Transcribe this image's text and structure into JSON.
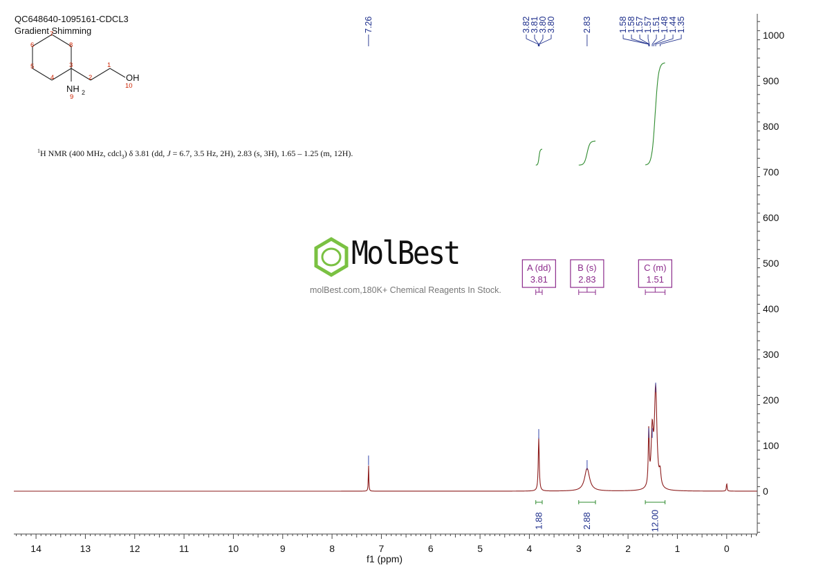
{
  "header": {
    "sample_id": "QC648640-1095161-CDCL3",
    "method": "Gradient Shimming"
  },
  "structure": {
    "atom_numbers": [
      "1",
      "2",
      "3",
      "4",
      "5",
      "6",
      "7",
      "8",
      "9",
      "10"
    ],
    "oh_label": "OH",
    "nh2_label": "NH",
    "nh2_sub": "2"
  },
  "nmr_summary": {
    "sup": "1",
    "text_a": "H NMR (400 MHz, cdcl",
    "sub": "3",
    "text_b": ") δ 3.81 (dd, ",
    "j_italic": "J",
    "text_c": " = 6.7, 3.5 Hz, 2H), 2.83 (s, 3H), 1.65 – 1.25 (m, 12H)."
  },
  "watermark": {
    "brand": "MolBest",
    "tagline": "molBest.com,180K+ Chemical Reagents In Stock."
  },
  "colors": {
    "spectrum": "#8b1a1a",
    "integral": "#2e8b2e",
    "peak_label": "#1e2f8c",
    "multiplet": "#8b2a8b",
    "atom_number": "#cc2200",
    "watermark_green": "#7ac142"
  },
  "chart_data": {
    "type": "line",
    "xlabel": "f1 (ppm)",
    "xlim": [
      14.45,
      -0.62
    ],
    "x_reversed": true,
    "ylim": [
      -95,
      1045
    ],
    "x_ticks": [
      14,
      13,
      12,
      11,
      10,
      9,
      8,
      7,
      6,
      5,
      4,
      3,
      2,
      1,
      0
    ],
    "y_ticks": [
      0,
      100,
      200,
      300,
      400,
      500,
      600,
      700,
      800,
      900,
      1000
    ],
    "peak_labels": [
      "7.26",
      "3.82",
      "3.81",
      "3.80",
      "3.80",
      "2.83",
      "1.58",
      "1.58",
      "1.57",
      "1.57",
      "1.51",
      "1.48",
      "1.44",
      "1.35"
    ],
    "peak_positions": [
      7.26,
      3.82,
      3.81,
      3.8,
      3.8,
      2.83,
      1.58,
      1.58,
      1.57,
      1.57,
      1.51,
      1.48,
      1.44,
      1.35
    ],
    "peaks": [
      {
        "ppm": 7.26,
        "height": 60,
        "width": 0.006
      },
      {
        "ppm": 3.81,
        "height": 118,
        "width": 0.012
      },
      {
        "ppm": 2.83,
        "height": 50,
        "width": 0.06
      },
      {
        "ppm": 1.58,
        "height": 120,
        "width": 0.012
      },
      {
        "ppm": 1.51,
        "height": 120,
        "width": 0.025
      },
      {
        "ppm": 1.44,
        "height": 220,
        "width": 0.03
      },
      {
        "ppm": 1.35,
        "height": 30,
        "width": 0.02
      },
      {
        "ppm": 0.0,
        "height": 18,
        "width": 0.008
      }
    ],
    "multiplets": [
      {
        "label": "A (dd)",
        "shift": "3.81",
        "from": 3.87,
        "to": 3.74
      },
      {
        "label": "B (s)",
        "shift": "2.83",
        "from": 3.0,
        "to": 2.66
      },
      {
        "label": "C (m)",
        "shift": "1.51",
        "from": 1.65,
        "to": 1.25
      }
    ],
    "integrals": [
      {
        "value": "1.88",
        "from": 3.87,
        "to": 3.74,
        "y_start": 715,
        "y_end": 750
      },
      {
        "value": "2.88",
        "from": 3.0,
        "to": 2.66,
        "y_start": 715,
        "y_end": 768
      },
      {
        "value": "12.00",
        "from": 1.65,
        "to": 1.25,
        "y_start": 715,
        "y_end": 940
      }
    ]
  }
}
